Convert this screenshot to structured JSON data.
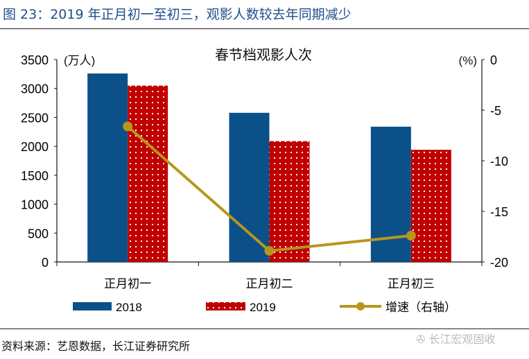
{
  "figure_title": "图 23：2019 年正月初一至初三，观影人数较去年同期减少",
  "source": "资料来源：艺恩数据，长江证券研究所",
  "watermark": "长江宏观固收",
  "chart_data": {
    "type": "bar",
    "title": "春节档观影人次",
    "categories": [
      "正月初一",
      "正月初二",
      "正月初三"
    ],
    "left_axis": {
      "label": "(万人)",
      "ylim": [
        0,
        3500
      ],
      "ticks": [
        "0",
        "500",
        "1000",
        "1500",
        "2000",
        "2500",
        "3000",
        "3500"
      ]
    },
    "right_axis": {
      "label": "(%)",
      "ylim": [
        -20,
        0
      ],
      "ticks": [
        "0",
        "-5",
        "-10",
        "-15",
        "-20"
      ]
    },
    "series": [
      {
        "name": "2018",
        "type": "bar",
        "axis": "left",
        "color": "#0b5089",
        "values": [
          3260,
          2580,
          2340
        ]
      },
      {
        "name": "2019",
        "type": "bar",
        "axis": "left",
        "color": "#c00000",
        "pattern": "white-dots",
        "values": [
          3050,
          2090,
          1940
        ]
      },
      {
        "name": "增速（右轴）",
        "type": "line",
        "axis": "right",
        "color": "#b8961e",
        "values": [
          -6.6,
          -18.9,
          -17.4
        ]
      }
    ],
    "grid": false,
    "legend": "bottom"
  }
}
